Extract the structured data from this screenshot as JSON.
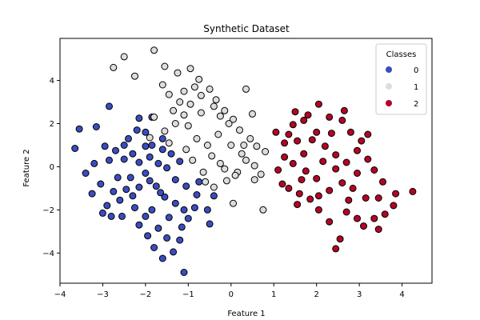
{
  "chart_data": {
    "type": "scatter",
    "title": "Synthetic Dataset",
    "xlabel": "Feature 1",
    "ylabel": "Feature 2",
    "xlim": [
      -4,
      4.7
    ],
    "ylim": [
      -5.4,
      5.95
    ],
    "xticks": [
      -4,
      -3,
      -2,
      -1,
      0,
      1,
      2,
      3,
      4
    ],
    "yticks": [
      -4,
      -2,
      0,
      2,
      4
    ],
    "grid": false,
    "legend": {
      "title": "Classes",
      "placement": "top-right",
      "entries": [
        "0",
        "1",
        "2"
      ]
    },
    "series": [
      {
        "name": "0",
        "color": "#3b4cc0",
        "points": [
          [
            -3.55,
            1.75
          ],
          [
            -3.65,
            0.85
          ],
          [
            -3.4,
            -0.3
          ],
          [
            -3.2,
            0.15
          ],
          [
            -3.15,
            1.85
          ],
          [
            -2.85,
            2.8
          ],
          [
            -3.05,
            -0.8
          ],
          [
            -2.9,
            -1.8
          ],
          [
            -3.0,
            -2.15
          ],
          [
            -2.6,
            -1.55
          ],
          [
            -2.55,
            -2.3
          ],
          [
            -2.4,
            1.3
          ],
          [
            -2.3,
            0.6
          ],
          [
            -2.2,
            1.7
          ],
          [
            -2.15,
            2.25
          ],
          [
            -2.0,
            1.6
          ],
          [
            -1.85,
            1.0
          ],
          [
            -1.6,
            0.8
          ],
          [
            -1.4,
            0.6
          ],
          [
            -2.35,
            -0.5
          ],
          [
            -2.0,
            -0.3
          ],
          [
            -1.75,
            -0.9
          ],
          [
            -1.55,
            -1.4
          ],
          [
            -1.3,
            -0.6
          ],
          [
            -1.05,
            -0.9
          ],
          [
            -0.8,
            -1.3
          ],
          [
            -0.85,
            -1.9
          ],
          [
            -1.0,
            -2.4
          ],
          [
            -1.15,
            -2.8
          ],
          [
            -1.2,
            -3.4
          ],
          [
            -1.35,
            -3.95
          ],
          [
            -1.1,
            -4.9
          ],
          [
            -1.6,
            -4.25
          ],
          [
            -1.8,
            -3.75
          ],
          [
            -1.5,
            -3.3
          ],
          [
            -1.7,
            -2.85
          ],
          [
            -1.95,
            -3.2
          ],
          [
            -2.15,
            -2.7
          ],
          [
            -2.0,
            -2.3
          ],
          [
            -1.85,
            -2.0
          ],
          [
            -2.25,
            -1.9
          ],
          [
            -2.45,
            -1.05
          ],
          [
            -2.65,
            -0.5
          ],
          [
            -2.85,
            0.3
          ],
          [
            -2.7,
            0.75
          ],
          [
            -2.5,
            0.35
          ],
          [
            -2.15,
            0.2
          ],
          [
            -1.9,
            0.45
          ],
          [
            -1.7,
            0.15
          ],
          [
            -1.5,
            -0.05
          ],
          [
            -1.9,
            -0.65
          ],
          [
            -2.15,
            -0.95
          ],
          [
            -1.65,
            -1.2
          ],
          [
            -1.3,
            -1.7
          ],
          [
            -1.1,
            -2.0
          ],
          [
            -0.55,
            -2.0
          ],
          [
            -0.4,
            -1.35
          ],
          [
            -0.75,
            -0.7
          ],
          [
            -1.2,
            0.25
          ],
          [
            -2.5,
            1.0
          ],
          [
            -2.95,
            0.95
          ],
          [
            -3.25,
            -1.25
          ],
          [
            -2.75,
            -1.15
          ],
          [
            -2.3,
            -1.35
          ],
          [
            -1.45,
            -2.35
          ],
          [
            -0.5,
            -2.65
          ],
          [
            -1.85,
            2.3
          ],
          [
            -1.6,
            1.3
          ],
          [
            -2.0,
            0.95
          ],
          [
            -2.8,
            -2.3
          ]
        ]
      },
      {
        "name": "1",
        "color": "#dddddd",
        "points": [
          [
            -2.75,
            4.6
          ],
          [
            -2.5,
            5.1
          ],
          [
            -2.25,
            4.2
          ],
          [
            -1.8,
            5.4
          ],
          [
            -1.55,
            4.65
          ],
          [
            -1.6,
            3.8
          ],
          [
            -1.8,
            2.3
          ],
          [
            -1.9,
            1.35
          ],
          [
            -1.55,
            1.65
          ],
          [
            -1.3,
            2.0
          ],
          [
            -1.1,
            2.4
          ],
          [
            -0.95,
            2.9
          ],
          [
            -0.7,
            3.3
          ],
          [
            -0.5,
            3.6
          ],
          [
            -0.75,
            4.05
          ],
          [
            -0.95,
            4.55
          ],
          [
            -1.25,
            4.35
          ],
          [
            -1.45,
            3.35
          ],
          [
            -1.2,
            3.0
          ],
          [
            -0.4,
            2.8
          ],
          [
            -0.25,
            2.35
          ],
          [
            -0.05,
            2.0
          ],
          [
            0.2,
            1.7
          ],
          [
            0.45,
            1.3
          ],
          [
            0.6,
            0.95
          ],
          [
            0.35,
            0.3
          ],
          [
            0.15,
            -0.25
          ],
          [
            -0.1,
            -0.65
          ],
          [
            -0.4,
            -0.95
          ],
          [
            -0.65,
            -0.25
          ],
          [
            -0.9,
            0.3
          ],
          [
            -1.05,
            0.8
          ],
          [
            -0.8,
            1.3
          ],
          [
            -0.55,
            1.0
          ],
          [
            -0.3,
            1.5
          ],
          [
            0.0,
            1.0
          ],
          [
            0.25,
            0.6
          ],
          [
            0.55,
            0.05
          ],
          [
            0.7,
            -0.35
          ],
          [
            0.55,
            -0.6
          ],
          [
            0.8,
            0.7
          ],
          [
            0.35,
            3.6
          ],
          [
            0.05,
            -1.7
          ],
          [
            0.75,
            -2.0
          ],
          [
            -0.15,
            2.6
          ],
          [
            -0.7,
            2.5
          ],
          [
            -1.0,
            1.9
          ],
          [
            -1.35,
            2.6
          ],
          [
            -0.45,
            0.5
          ],
          [
            -0.6,
            -0.7
          ],
          [
            -0.25,
            0.15
          ],
          [
            0.1,
            -0.4
          ],
          [
            0.3,
            1.0
          ],
          [
            -1.1,
            3.5
          ],
          [
            -0.85,
            3.7
          ],
          [
            -0.35,
            3.1
          ],
          [
            0.05,
            2.2
          ],
          [
            0.5,
            2.45
          ],
          [
            -1.45,
            1.1
          ],
          [
            -0.15,
            -0.1
          ]
        ]
      },
      {
        "name": "2",
        "color": "#b40426",
        "points": [
          [
            1.05,
            1.6
          ],
          [
            1.25,
            1.1
          ],
          [
            1.45,
            1.95
          ],
          [
            1.5,
            2.55
          ],
          [
            1.7,
            2.15
          ],
          [
            2.05,
            2.9
          ],
          [
            2.3,
            2.3
          ],
          [
            2.6,
            2.15
          ],
          [
            2.65,
            2.6
          ],
          [
            2.8,
            1.6
          ],
          [
            3.05,
            1.2
          ],
          [
            3.2,
            1.5
          ],
          [
            3.2,
            0.35
          ],
          [
            3.35,
            -0.15
          ],
          [
            3.55,
            -0.7
          ],
          [
            3.85,
            -1.25
          ],
          [
            4.25,
            -1.15
          ],
          [
            3.8,
            -1.8
          ],
          [
            3.6,
            -2.2
          ],
          [
            3.45,
            -2.9
          ],
          [
            3.1,
            -2.75
          ],
          [
            2.95,
            -2.4
          ],
          [
            2.7,
            -2.1
          ],
          [
            2.55,
            -3.35
          ],
          [
            2.45,
            -3.8
          ],
          [
            2.3,
            -2.55
          ],
          [
            2.05,
            -2.0
          ],
          [
            1.85,
            -1.5
          ],
          [
            1.6,
            -1.25
          ],
          [
            1.55,
            -1.75
          ],
          [
            1.35,
            -1.0
          ],
          [
            1.1,
            -0.15
          ],
          [
            1.25,
            0.45
          ],
          [
            1.45,
            0.15
          ],
          [
            1.7,
            0.6
          ],
          [
            1.9,
            1.25
          ],
          [
            2.2,
            0.95
          ],
          [
            2.45,
            0.55
          ],
          [
            2.7,
            0.2
          ],
          [
            2.95,
            -0.3
          ],
          [
            2.6,
            -0.75
          ],
          [
            2.3,
            -1.1
          ],
          [
            2.0,
            -0.55
          ],
          [
            1.75,
            -0.2
          ],
          [
            2.15,
            0.25
          ],
          [
            2.45,
            -0.1
          ],
          [
            2.85,
            -1.0
          ],
          [
            3.15,
            -1.45
          ],
          [
            2.95,
            0.75
          ],
          [
            1.8,
            2.4
          ],
          [
            1.55,
            1.2
          ],
          [
            2.0,
            1.6
          ],
          [
            1.2,
            -0.8
          ],
          [
            1.35,
            1.5
          ],
          [
            3.45,
            -1.45
          ],
          [
            2.05,
            -1.35
          ],
          [
            2.35,
            1.55
          ],
          [
            1.65,
            -0.6
          ],
          [
            2.75,
            -1.55
          ],
          [
            3.35,
            -2.4
          ]
        ]
      }
    ]
  }
}
